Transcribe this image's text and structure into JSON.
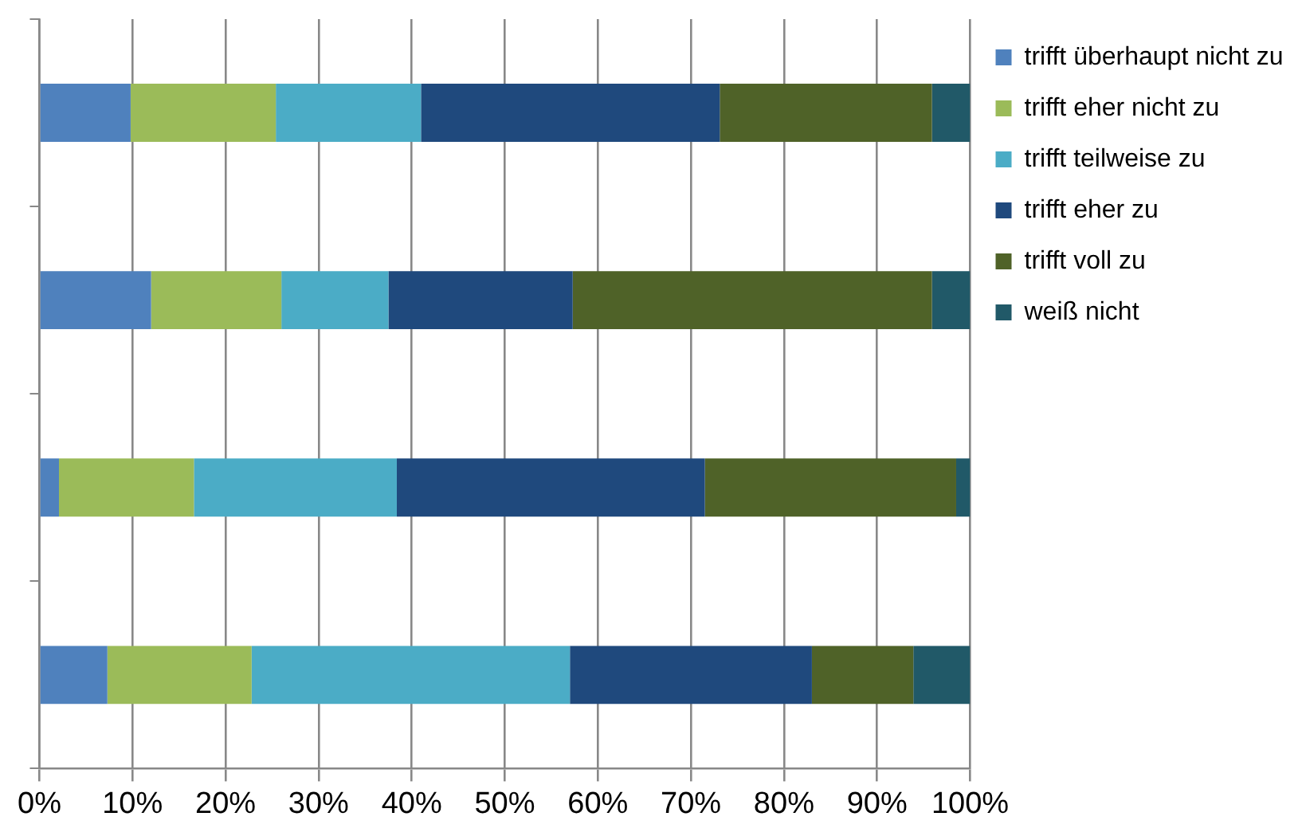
{
  "chart_data": {
    "type": "bar",
    "orientation": "horizontal",
    "stacked": true,
    "categories": [
      null,
      null,
      null,
      null
    ],
    "series": [
      {
        "name": "trifft überhaupt nicht zu",
        "color": "#4f81bd",
        "values": [
          9.8,
          12.0,
          2.1,
          7.3
        ]
      },
      {
        "name": "trifft eher nicht zu",
        "color": "#9bbb59",
        "values": [
          15.6,
          14.0,
          14.5,
          15.5
        ]
      },
      {
        "name": "trifft teilweise zu",
        "color": "#4bacc6",
        "values": [
          15.6,
          11.5,
          21.8,
          34.2
        ]
      },
      {
        "name": "trifft eher zu",
        "color": "#1f497d",
        "values": [
          32.1,
          19.8,
          33.1,
          26.0
        ]
      },
      {
        "name": "trifft voll zu",
        "color": "#4f6228",
        "values": [
          22.8,
          38.6,
          27.0,
          10.9
        ]
      },
      {
        "name": "weiß nicht",
        "color": "#215968",
        "values": [
          4.1,
          4.1,
          1.5,
          6.1
        ]
      }
    ],
    "xlim": [
      0,
      100
    ],
    "xticks": [
      {
        "value": 0,
        "label": "0%"
      },
      {
        "value": 10,
        "label": "10%"
      },
      {
        "value": 20,
        "label": "20%"
      },
      {
        "value": 30,
        "label": "30%"
      },
      {
        "value": 40,
        "label": "40%"
      },
      {
        "value": 50,
        "label": "50%"
      },
      {
        "value": 60,
        "label": "60%"
      },
      {
        "value": 70,
        "label": "70%"
      },
      {
        "value": 80,
        "label": "80%"
      },
      {
        "value": 90,
        "label": "90%"
      },
      {
        "value": 100,
        "label": "100%"
      }
    ],
    "grid": "x",
    "legend": "right",
    "tick_labels": "x"
  }
}
